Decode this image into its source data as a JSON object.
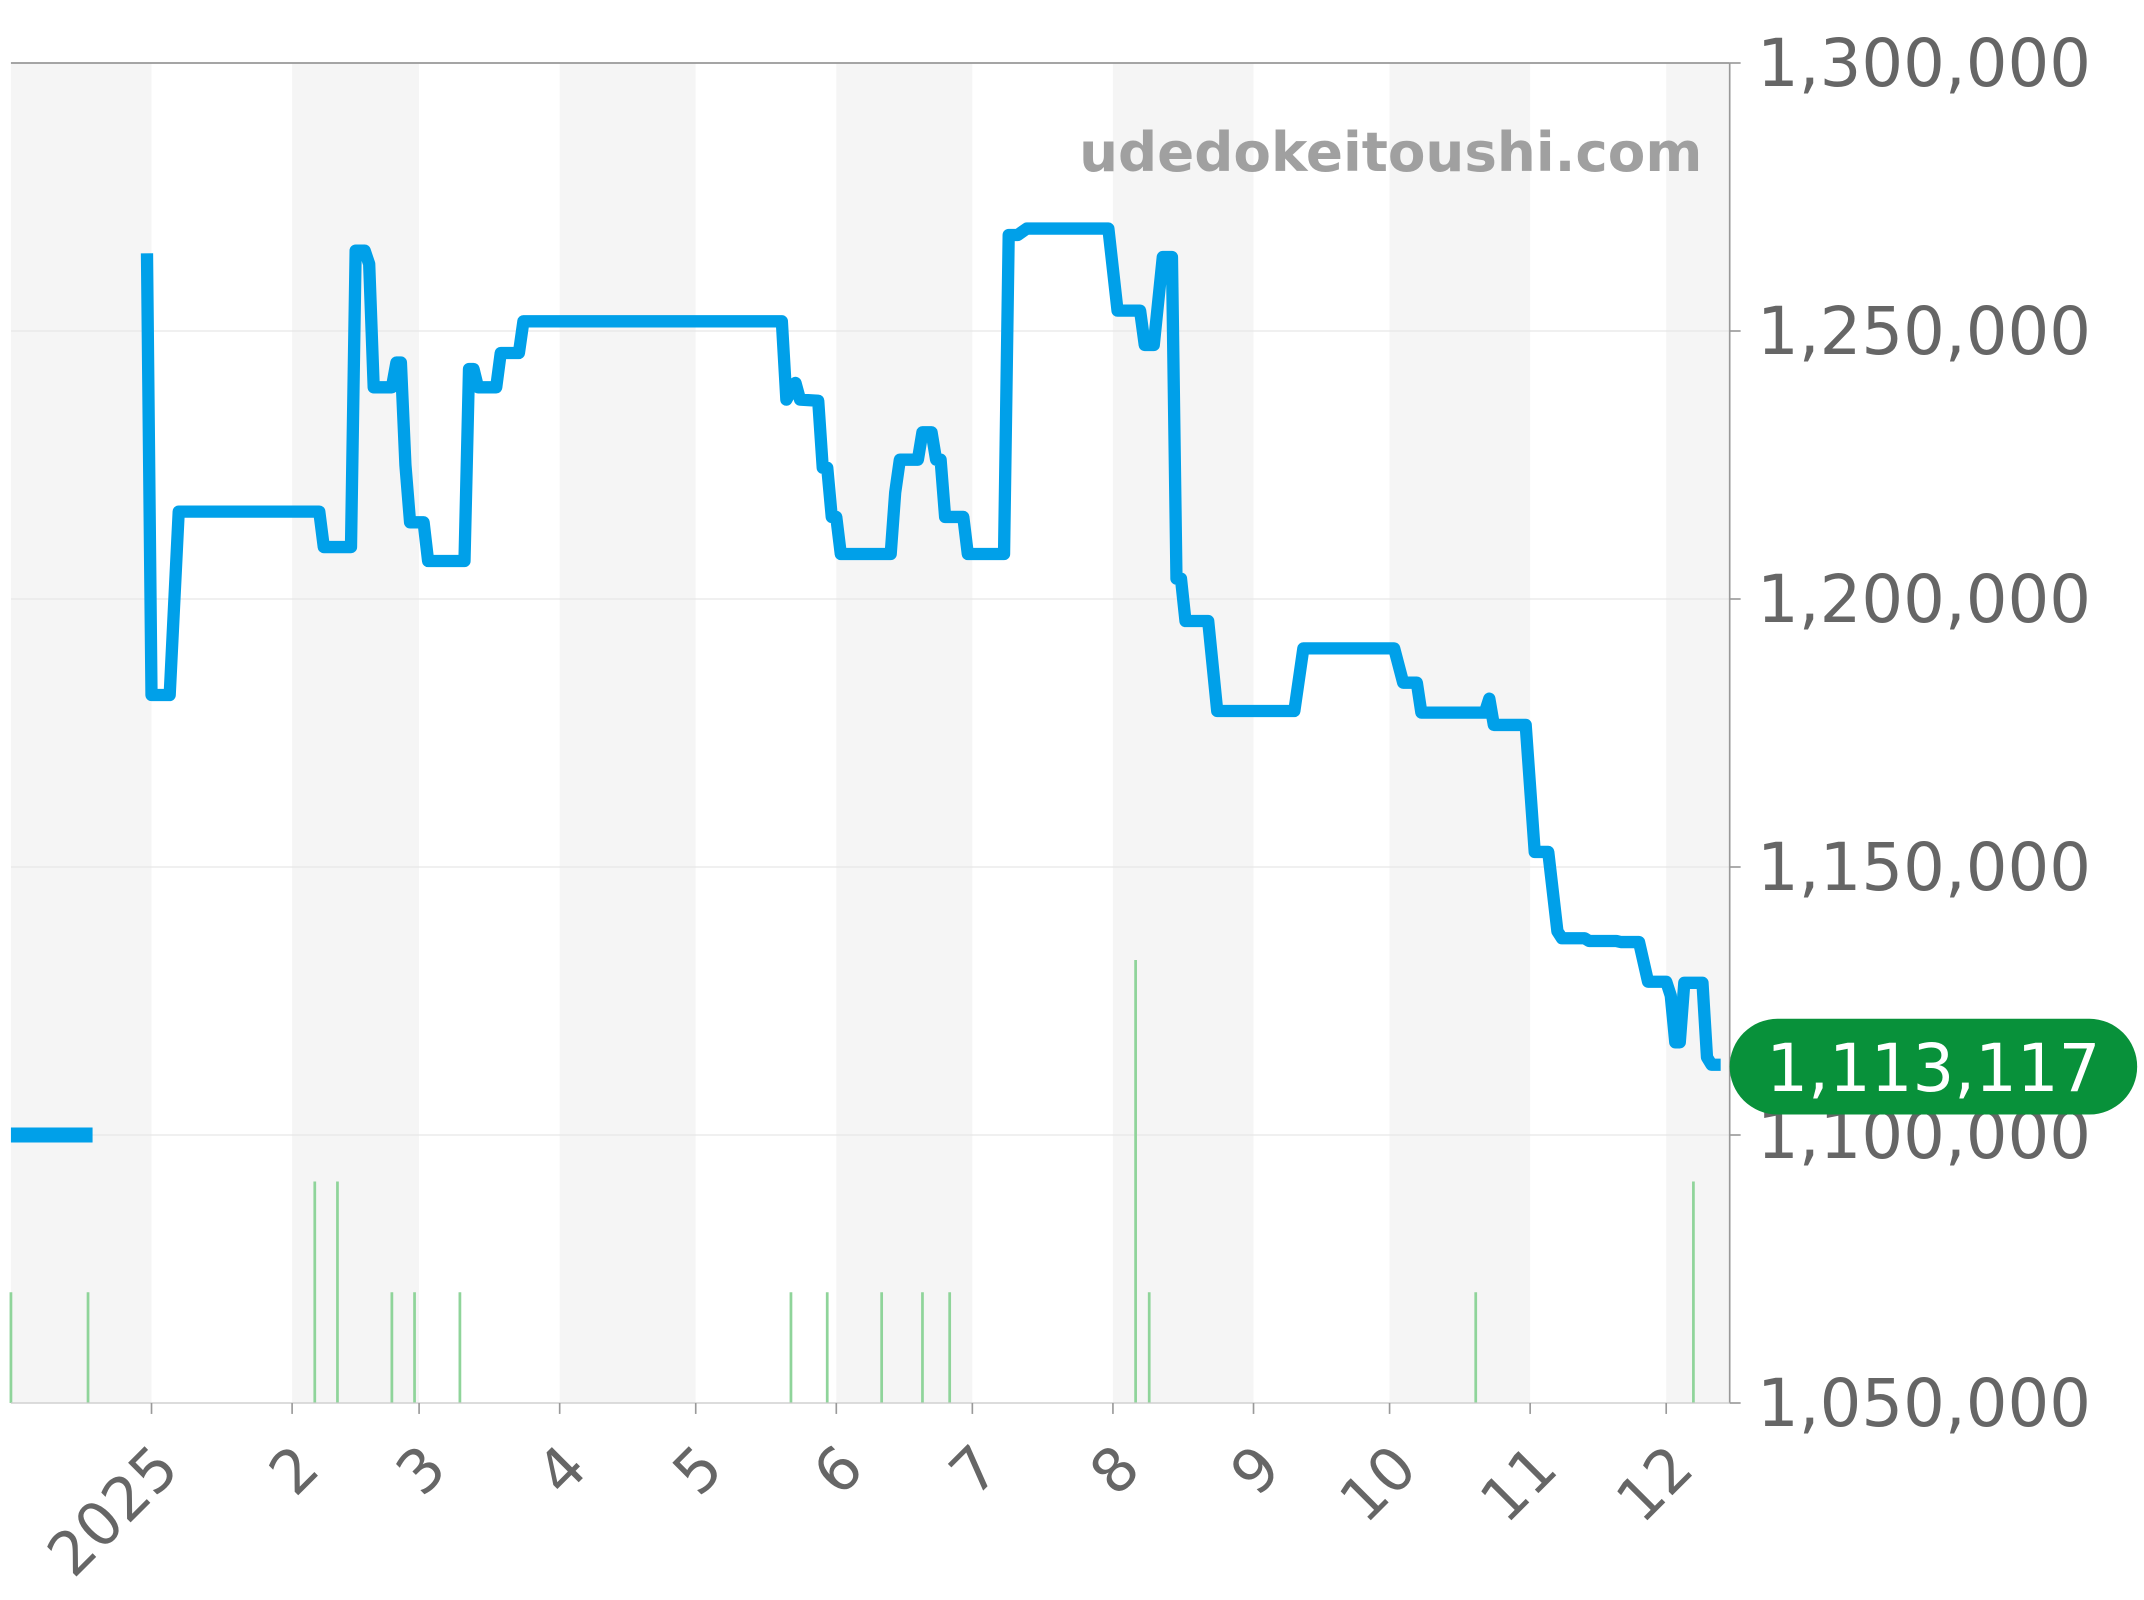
{
  "chart_data": {
    "type": "line",
    "title": "",
    "watermark": "udedokeitoushi.com",
    "xlabel": "",
    "ylabel": "",
    "xlim": [
      "2024-12-01",
      "2025-12-15"
    ],
    "ylim": [
      1050000,
      1300000
    ],
    "y_ticks": [
      1050000,
      1100000,
      1150000,
      1200000,
      1250000,
      1300000
    ],
    "y_tick_labels": [
      "1,050,000",
      "1,100,000",
      "1,150,000",
      "1,200,000",
      "1,250,000",
      "1,300,000"
    ],
    "x_ticks": [
      {
        "date": "2025-01-01",
        "label": "2025"
      },
      {
        "date": "2025-02-01",
        "label": "2"
      },
      {
        "date": "2025-03-01",
        "label": "3"
      },
      {
        "date": "2025-04-01",
        "label": "4"
      },
      {
        "date": "2025-05-01",
        "label": "5"
      },
      {
        "date": "2025-06-01",
        "label": "6"
      },
      {
        "date": "2025-07-01",
        "label": "7"
      },
      {
        "date": "2025-08-01",
        "label": "8"
      },
      {
        "date": "2025-09-01",
        "label": "9"
      },
      {
        "date": "2025-10-01",
        "label": "10"
      },
      {
        "date": "2025-11-01",
        "label": "11"
      },
      {
        "date": "2025-12-01",
        "label": "12"
      }
    ],
    "grid": true,
    "alternating_month_shading": true,
    "colors": {
      "line": "#00a0e9",
      "volume": "#8fd49a",
      "badge": "#08913a",
      "shade": "#f5f5f5",
      "grid": "#e6e6e6",
      "tick_text": "#666666",
      "watermark": "#a0a0a0"
    },
    "current_value": 1113117,
    "current_value_label": "1,113,117",
    "series": [
      {
        "segment": "early",
        "points": [
          [
            "2024-12-01",
            1100000
          ],
          [
            "2024-12-19",
            1100000
          ]
        ]
      },
      {
        "segment": "main",
        "points": [
          [
            "2024-12-31",
            1264500
          ],
          [
            "2025-01-01",
            1182100
          ],
          [
            "2025-01-05",
            1182100
          ],
          [
            "2025-01-07",
            1216300
          ],
          [
            "2025-02-07",
            1216300
          ],
          [
            "2025-02-08",
            1209700
          ],
          [
            "2025-02-14",
            1209700
          ],
          [
            "2025-02-15",
            1265000
          ],
          [
            "2025-02-17",
            1265000
          ],
          [
            "2025-02-18",
            1262500
          ],
          [
            "2025-02-19",
            1239500
          ],
          [
            "2025-02-23",
            1239500
          ],
          [
            "2025-02-24",
            1244100
          ],
          [
            "2025-02-25",
            1244100
          ],
          [
            "2025-02-26",
            1225000
          ],
          [
            "2025-02-27",
            1214300
          ],
          [
            "2025-03-02",
            1214300
          ],
          [
            "2025-03-03",
            1207100
          ],
          [
            "2025-03-11",
            1207100
          ],
          [
            "2025-03-12",
            1242900
          ],
          [
            "2025-03-13",
            1242900
          ],
          [
            "2025-03-14",
            1239500
          ],
          [
            "2025-03-18",
            1239500
          ],
          [
            "2025-03-19",
            1245900
          ],
          [
            "2025-03-23",
            1245900
          ],
          [
            "2025-03-24",
            1251800
          ],
          [
            "2025-05-20",
            1251800
          ],
          [
            "2025-05-21",
            1237200
          ],
          [
            "2025-05-23",
            1240300
          ],
          [
            "2025-05-24",
            1237200
          ],
          [
            "2025-05-28",
            1237000
          ],
          [
            "2025-05-29",
            1224500
          ],
          [
            "2025-05-30",
            1224500
          ],
          [
            "2025-05-31",
            1215300
          ],
          [
            "2025-06-01",
            1215300
          ],
          [
            "2025-06-02",
            1208400
          ],
          [
            "2025-06-13",
            1208400
          ],
          [
            "2025-06-14",
            1219900
          ],
          [
            "2025-06-15",
            1226000
          ],
          [
            "2025-06-19",
            1226000
          ],
          [
            "2025-06-20",
            1231100
          ],
          [
            "2025-06-22",
            1231100
          ],
          [
            "2025-06-23",
            1226000
          ],
          [
            "2025-06-24",
            1226000
          ],
          [
            "2025-06-25",
            1215300
          ],
          [
            "2025-06-29",
            1215300
          ],
          [
            "2025-06-30",
            1208400
          ],
          [
            "2025-07-08",
            1208400
          ],
          [
            "2025-07-09",
            1267900
          ],
          [
            "2025-07-11",
            1267900
          ],
          [
            "2025-07-13",
            1269100
          ],
          [
            "2025-07-31",
            1269100
          ],
          [
            "2025-08-02",
            1253800
          ],
          [
            "2025-08-07",
            1253800
          ],
          [
            "2025-08-08",
            1247400
          ],
          [
            "2025-08-10",
            1247400
          ],
          [
            "2025-08-12",
            1263800
          ],
          [
            "2025-08-14",
            1263800
          ],
          [
            "2025-08-15",
            1203800
          ],
          [
            "2025-08-16",
            1203800
          ],
          [
            "2025-08-17",
            1195900
          ],
          [
            "2025-08-22",
            1195900
          ],
          [
            "2025-08-24",
            1179100
          ],
          [
            "2025-09-10",
            1179100
          ],
          [
            "2025-09-12",
            1190800
          ],
          [
            "2025-10-02",
            1190800
          ],
          [
            "2025-10-04",
            1184400
          ],
          [
            "2025-10-07",
            1184400
          ],
          [
            "2025-10-08",
            1178800
          ],
          [
            "2025-10-22",
            1178800
          ],
          [
            "2025-10-23",
            1181400
          ],
          [
            "2025-10-24",
            1176500
          ],
          [
            "2025-10-31",
            1176500
          ],
          [
            "2025-11-02",
            1152800
          ],
          [
            "2025-11-05",
            1152800
          ],
          [
            "2025-11-07",
            1138000
          ],
          [
            "2025-11-08",
            1136700
          ],
          [
            "2025-11-13",
            1136700
          ],
          [
            "2025-11-14",
            1136200
          ],
          [
            "2025-11-20",
            1136200
          ],
          [
            "2025-11-21",
            1136000
          ],
          [
            "2025-11-25",
            1136000
          ],
          [
            "2025-11-27",
            1128600
          ],
          [
            "2025-12-01",
            1128600
          ],
          [
            "2025-12-02",
            1126000
          ],
          [
            "2025-12-03",
            1117300
          ],
          [
            "2025-12-04",
            1117300
          ],
          [
            "2025-12-05",
            1128400
          ],
          [
            "2025-12-09",
            1128400
          ],
          [
            "2025-12-10",
            1114500
          ],
          [
            "2025-12-11",
            1113117
          ],
          [
            "2025-12-13",
            1113117
          ]
        ]
      }
    ],
    "volume": [
      [
        "2024-12-01",
        1
      ],
      [
        "2024-12-18",
        1
      ],
      [
        "2025-02-06",
        2
      ],
      [
        "2025-02-11",
        2
      ],
      [
        "2025-02-23",
        1
      ],
      [
        "2025-02-28",
        1
      ],
      [
        "2025-03-10",
        1
      ],
      [
        "2025-05-22",
        1
      ],
      [
        "2025-05-30",
        1
      ],
      [
        "2025-06-11",
        1
      ],
      [
        "2025-06-20",
        1
      ],
      [
        "2025-06-26",
        1
      ],
      [
        "2025-08-06",
        4
      ],
      [
        "2025-08-09",
        1
      ],
      [
        "2025-10-20",
        1
      ],
      [
        "2025-12-07",
        2
      ]
    ]
  }
}
